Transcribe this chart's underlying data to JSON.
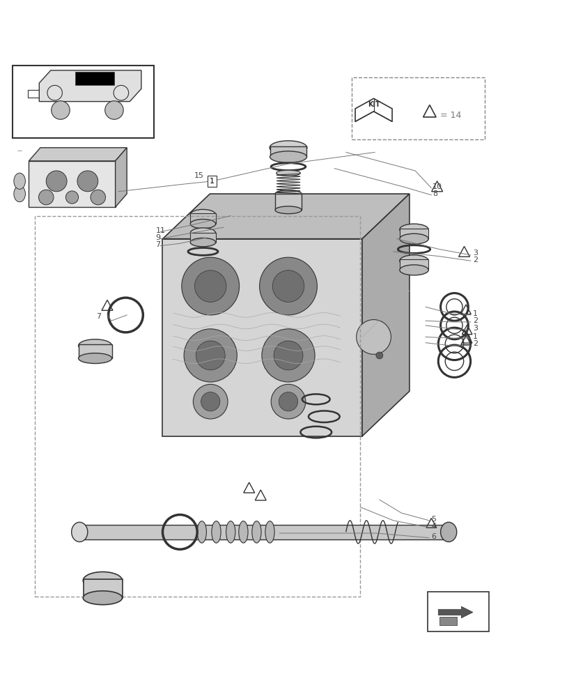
{
  "background_color": "#ffffff",
  "fig_width": 8.28,
  "fig_height": 10.0,
  "dpi": 100,
  "line_color": "#333333",
  "label_color": "#444444",
  "leader_color": "#777777"
}
